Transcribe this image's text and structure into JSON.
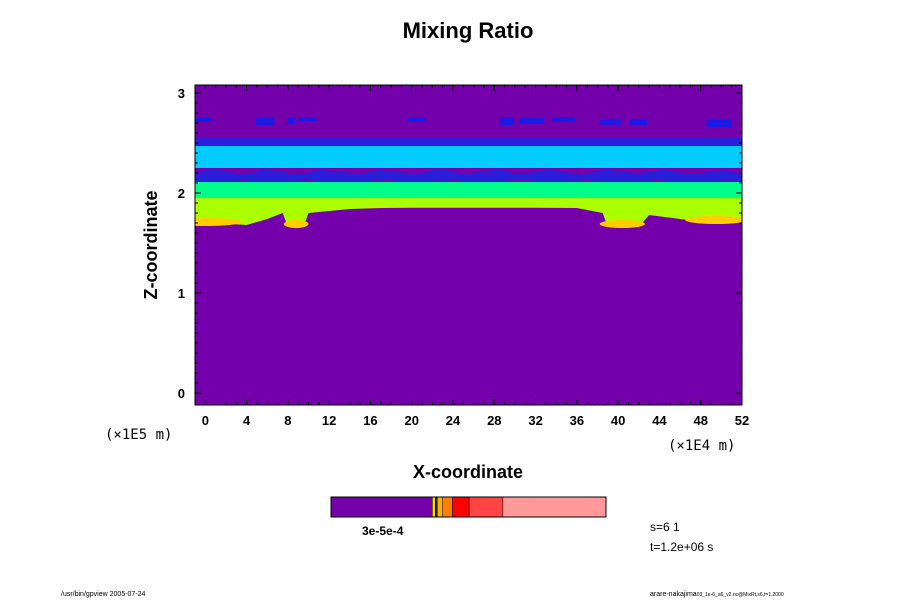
{
  "chart_data": {
    "type": "heatmap",
    "title": "Mixing Ratio",
    "xlabel": "X-coordinate",
    "ylabel": "Z-coordinate",
    "x_unit": "(×1E4 m)",
    "y_unit": "(×1E5 m)",
    "xlim": [
      -1,
      52
    ],
    "ylim": [
      -0.12,
      3.08
    ],
    "x_ticks": [
      0,
      4,
      8,
      12,
      16,
      20,
      24,
      28,
      32,
      36,
      40,
      44,
      48,
      52
    ],
    "y_ticks": [
      0,
      1,
      2,
      3
    ],
    "background_color": "#7300aa",
    "bands": [
      {
        "z_bottom": 2.68,
        "z_top": 2.76,
        "color": "#1a1ae6",
        "pattern": "patchy"
      },
      {
        "z_bottom": 2.47,
        "z_top": 2.55,
        "color": "#2a1fd8",
        "pattern": "solid"
      },
      {
        "z_bottom": 2.25,
        "z_top": 2.47,
        "color": "#00ccff",
        "pattern": "solid"
      },
      {
        "z_bottom": 2.12,
        "z_top": 2.22,
        "color": "#2a1fd8",
        "pattern": "wavy"
      },
      {
        "z_bottom": 1.85,
        "z_top": 2.11,
        "color": "#00ff88",
        "pattern": "solid"
      }
    ],
    "lower_plume_color": "#aaff00",
    "hot_spot_color": "#ffcc00",
    "colorbar": {
      "segments": [
        {
          "color": "#7300aa",
          "weight": 16.5
        },
        {
          "color": "#ffd700",
          "weight": 0.5
        },
        {
          "color": "#1a1a1a",
          "weight": 0.3
        },
        {
          "color": "#ffb000",
          "weight": 0.9
        },
        {
          "color": "#ff7f00",
          "weight": 1.6
        },
        {
          "color": "#ff0000",
          "weight": 2.7
        },
        {
          "color": "#ff4444",
          "weight": 5.5
        },
        {
          "color": "#ff9999",
          "weight": 16.8
        }
      ],
      "label": "3e-5e-4"
    },
    "annotation_step": "s=6 1",
    "annotation_time": "t=1.2e+06 s"
  },
  "footer": {
    "left": "/usr/bin/gpview 2005-07-24",
    "right": "arare-nakajima",
    "right_small": "03_1e-6_a6_v2.nc@MixRt,s6,t=1.2000"
  }
}
